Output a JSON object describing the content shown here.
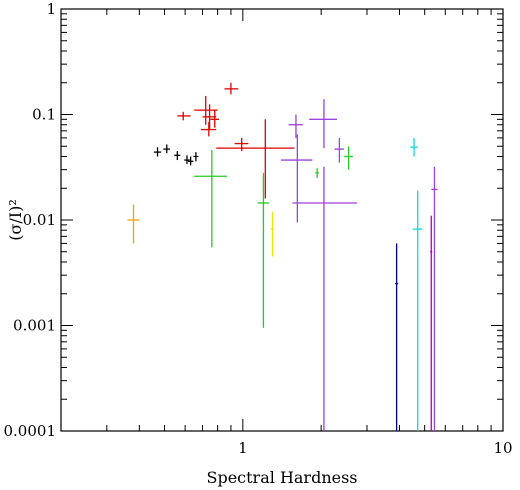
{
  "chart_data": {
    "type": "scatter",
    "title": "",
    "xlabel": "Spectral Hardness",
    "ylabel": "(σ/I)²",
    "x_scale": "log",
    "y_scale": "log",
    "xlim": [
      0.2,
      10
    ],
    "ylim": [
      0.0001,
      1
    ],
    "x_tick_labels": [
      {
        "value": 1,
        "label": "1"
      },
      {
        "value": 10,
        "label": "10"
      }
    ],
    "y_tick_labels": [
      {
        "value": 1,
        "label": "1"
      },
      {
        "value": 0.1,
        "label": "0.1"
      },
      {
        "value": 0.01,
        "label": "0.01"
      },
      {
        "value": 0.001,
        "label": "0.001"
      },
      {
        "value": 0.0001,
        "label": "0.0001"
      }
    ],
    "grid": false,
    "legend": "none",
    "colors": {
      "black": "#000000",
      "red": "#e00000",
      "green": "#22cc22",
      "orange": "#f0a500",
      "yellow": "#e8e800",
      "purple": "#a040e0",
      "blue": "#000090",
      "cyan": "#00e0e0",
      "magenta": "#b000b0"
    },
    "points": [
      {
        "x": 0.47,
        "y": 0.044,
        "xerr": [
          0.455,
          0.485
        ],
        "yerr": [
          0.04,
          0.049
        ],
        "color": "black"
      },
      {
        "x": 0.51,
        "y": 0.047,
        "xerr": [
          0.495,
          0.525
        ],
        "yerr": [
          0.043,
          0.052
        ],
        "color": "black"
      },
      {
        "x": 0.56,
        "y": 0.041,
        "xerr": [
          0.545,
          0.575
        ],
        "yerr": [
          0.037,
          0.045
        ],
        "color": "black"
      },
      {
        "x": 0.61,
        "y": 0.037,
        "xerr": [
          0.595,
          0.625
        ],
        "yerr": [
          0.034,
          0.041
        ],
        "color": "black"
      },
      {
        "x": 0.63,
        "y": 0.036,
        "xerr": [
          0.615,
          0.645
        ],
        "yerr": [
          0.033,
          0.04
        ],
        "color": "black"
      },
      {
        "x": 0.66,
        "y": 0.04,
        "xerr": [
          0.645,
          0.675
        ],
        "yerr": [
          0.036,
          0.044
        ],
        "color": "black"
      },
      {
        "x": 0.59,
        "y": 0.097,
        "xerr": [
          0.56,
          0.63
        ],
        "yerr": [
          0.088,
          0.106
        ],
        "color": "red"
      },
      {
        "x": 0.72,
        "y": 0.11,
        "xerr": [
          0.65,
          0.8
        ],
        "yerr": [
          0.08,
          0.15
        ],
        "color": "red"
      },
      {
        "x": 0.745,
        "y": 0.095,
        "xerr": [
          0.7,
          0.79
        ],
        "yerr": [
          0.072,
          0.125
        ],
        "color": "red"
      },
      {
        "x": 0.74,
        "y": 0.072,
        "xerr": [
          0.69,
          0.79
        ],
        "yerr": [
          0.062,
          0.085
        ],
        "color": "red"
      },
      {
        "x": 0.78,
        "y": 0.09,
        "xerr": [
          0.75,
          0.81
        ],
        "yerr": [
          0.075,
          0.11
        ],
        "color": "red"
      },
      {
        "x": 0.9,
        "y": 0.175,
        "xerr": [
          0.85,
          0.96
        ],
        "yerr": [
          0.155,
          0.2
        ],
        "color": "red"
      },
      {
        "x": 0.99,
        "y": 0.053,
        "xerr": [
          0.93,
          1.05
        ],
        "yerr": [
          0.045,
          0.06
        ],
        "color": "red"
      },
      {
        "x": 1.22,
        "y": 0.048,
        "xerr": [
          0.79,
          1.58
        ],
        "yerr": [
          0.016,
          0.09
        ],
        "color": "red"
      },
      {
        "x": 0.76,
        "y": 0.026,
        "xerr": [
          0.65,
          0.87
        ],
        "yerr": [
          0.0055,
          0.046
        ],
        "color": "green"
      },
      {
        "x": 1.2,
        "y": 0.0145,
        "xerr": [
          1.14,
          1.26
        ],
        "yerr": [
          0.00095,
          0.028
        ],
        "color": "green"
      },
      {
        "x": 1.93,
        "y": 0.028,
        "xerr": [
          1.9,
          1.96
        ],
        "yerr": [
          0.025,
          0.031
        ],
        "color": "green"
      },
      {
        "x": 2.55,
        "y": 0.04,
        "xerr": [
          2.45,
          2.65
        ],
        "yerr": [
          0.03,
          0.05
        ],
        "color": "green"
      },
      {
        "x": 0.38,
        "y": 0.01,
        "xerr": [
          0.36,
          0.4
        ],
        "yerr": [
          0.006,
          0.014
        ],
        "color": "orange"
      },
      {
        "x": 1.3,
        "y": 0.0082,
        "xerr": [
          1.28,
          1.32
        ],
        "yerr": [
          0.0045,
          0.012
        ],
        "color": "yellow"
      },
      {
        "x": 1.6,
        "y": 0.08,
        "xerr": [
          1.5,
          1.7
        ],
        "yerr": [
          0.06,
          0.1
        ],
        "color": "purple"
      },
      {
        "x": 1.62,
        "y": 0.037,
        "xerr": [
          1.4,
          1.85
        ],
        "yerr": [
          0.0095,
          0.065
        ],
        "color": "purple"
      },
      {
        "x": 2.05,
        "y": 0.09,
        "xerr": [
          1.8,
          2.3
        ],
        "yerr": [
          0.048,
          0.14
        ],
        "color": "purple"
      },
      {
        "x": 2.05,
        "y": 0.0145,
        "xerr": [
          1.55,
          2.75
        ],
        "yerr": [
          0.0001,
          0.032
        ],
        "color": "purple"
      },
      {
        "x": 2.35,
        "y": 0.047,
        "xerr": [
          2.25,
          2.45
        ],
        "yerr": [
          0.035,
          0.06
        ],
        "color": "purple"
      },
      {
        "x": 3.9,
        "y": 0.0025,
        "xerr": [
          3.85,
          3.95
        ],
        "yerr": [
          0.0001,
          0.006
        ],
        "color": "blue"
      },
      {
        "x": 4.55,
        "y": 0.049,
        "xerr": [
          4.4,
          4.7
        ],
        "yerr": [
          0.04,
          0.06
        ],
        "color": "cyan"
      },
      {
        "x": 4.7,
        "y": 0.0082,
        "xerr": [
          4.5,
          4.9
        ],
        "yerr": [
          0.0001,
          0.019
        ],
        "color": "cyan"
      },
      {
        "x": 5.45,
        "y": 0.0195,
        "xerr": [
          5.3,
          5.6
        ],
        "yerr": [
          0.0001,
          0.032
        ],
        "color": "purple"
      },
      {
        "x": 5.3,
        "y": 0.005,
        "xerr": [
          5.25,
          5.35
        ],
        "yerr": [
          0.0001,
          0.011
        ],
        "color": "magenta"
      }
    ]
  }
}
